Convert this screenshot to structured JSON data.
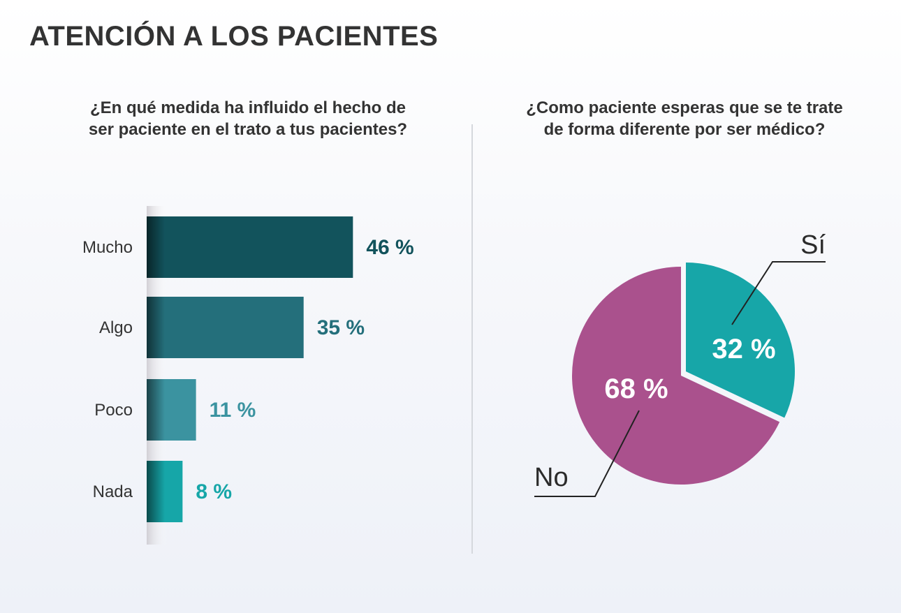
{
  "title": "ATENCIÓN A LOS PACIENTES",
  "chart_data": [
    {
      "type": "bar",
      "orientation": "horizontal",
      "title": "¿En qué medida ha influido el hecho de ser paciente en el trato a tus pacientes?",
      "title_lines": [
        "¿En qué medida ha influido el hecho de",
        "ser paciente en el trato a tus pacientes?"
      ],
      "categories": [
        "Mucho",
        "Algo",
        "Poco",
        "Nada"
      ],
      "values": [
        46,
        35,
        11,
        8
      ],
      "labels": [
        "46 %",
        "35 %",
        "11 %",
        "8 %"
      ],
      "colors": [
        "#12535c",
        "#246f7b",
        "#3b93a0",
        "#16a6a8"
      ],
      "unit": "%",
      "grid": false
    },
    {
      "type": "pie",
      "title": "¿Como paciente esperas que se te trate de forma diferente por ser médico?",
      "title_lines": [
        "¿Como paciente esperas que se te trate",
        "de forma diferente por ser médico?"
      ],
      "categories": [
        "Sí",
        "No"
      ],
      "values": [
        32,
        68
      ],
      "labels": [
        "32 %",
        "68 %"
      ],
      "colors": [
        "#17a6a8",
        "#aa518d"
      ],
      "exploded": "Sí"
    }
  ]
}
